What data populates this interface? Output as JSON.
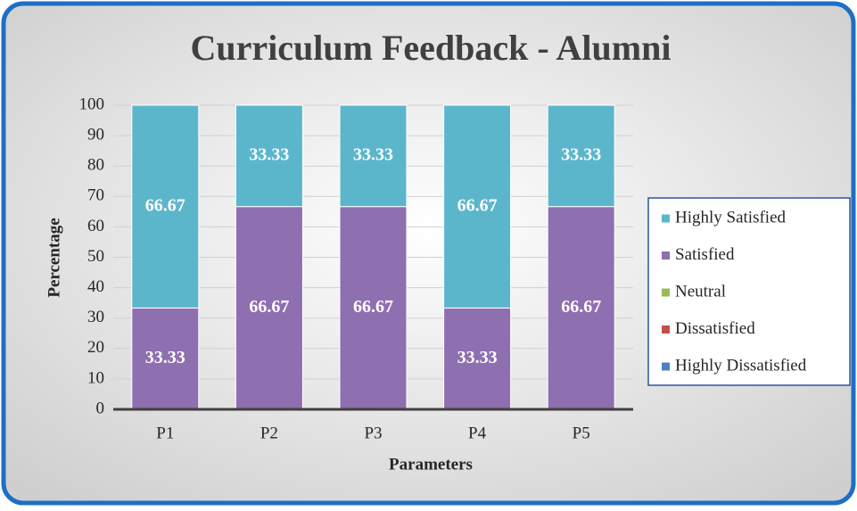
{
  "chart_data": {
    "type": "bar",
    "stacked": true,
    "title": "Curriculum Feedback - Alumni",
    "x_label": "Parameters",
    "y_label": "Percentage",
    "categories": [
      "P1",
      "P2",
      "P3",
      "P4",
      "P5"
    ],
    "series": [
      {
        "name": "Highly Dissatisfied",
        "color": "#4f81bd",
        "values": [
          0,
          0,
          0,
          0,
          0
        ]
      },
      {
        "name": "Dissatisfied",
        "color": "#c0504d",
        "values": [
          0,
          0,
          0,
          0,
          0
        ]
      },
      {
        "name": "Neutral",
        "color": "#9bbb59",
        "values": [
          0,
          0,
          0,
          0,
          0
        ]
      },
      {
        "name": "Satisfied",
        "color": "#8e6fb0",
        "values": [
          33.33,
          66.67,
          66.67,
          33.33,
          66.67
        ]
      },
      {
        "name": "Highly Satisfied",
        "color": "#5cb6cb",
        "values": [
          66.67,
          33.33,
          33.33,
          66.67,
          33.33
        ]
      }
    ],
    "ylim": [
      0,
      100
    ],
    "yticks": [
      0,
      10,
      20,
      30,
      40,
      50,
      60,
      70,
      80,
      90,
      100
    ],
    "grid": true,
    "legend": "right"
  }
}
